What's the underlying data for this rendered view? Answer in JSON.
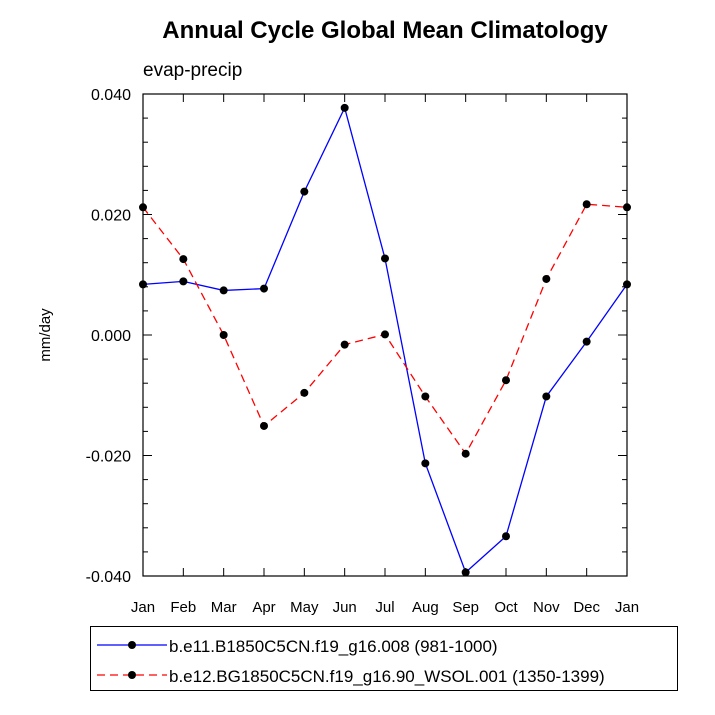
{
  "chart_data": {
    "type": "line",
    "title": "Annual Cycle Global Mean Climatology",
    "subtitle": "evap-precip",
    "xlabel": "",
    "ylabel": "mm/day",
    "categories": [
      "Jan",
      "Feb",
      "Mar",
      "Apr",
      "May",
      "Jun",
      "Jul",
      "Aug",
      "Sep",
      "Oct",
      "Nov",
      "Dec",
      "Jan"
    ],
    "ylim": [
      -0.04,
      0.04
    ],
    "yticks": [
      -0.04,
      -0.02,
      0.0,
      0.02,
      0.04
    ],
    "ytick_labels": [
      "-0.040",
      "-0.020",
      "0.000",
      "0.020",
      "0.040"
    ],
    "legend_position": "bottom",
    "series": [
      {
        "name": "b.e11.B1850C5CN.f19_g16.008 (981-1000)",
        "color": "#0000ff",
        "dash": "solid",
        "values": [
          0.0084,
          0.0089,
          0.0074,
          0.0077,
          0.0238,
          0.0377,
          0.0127,
          -0.0213,
          -0.0394,
          -0.0334,
          -0.0102,
          -0.0011,
          0.0084
        ]
      },
      {
        "name": "b.e12.BG1850C5CN.f19_g16.90_WSOL.001 (1350-1399)",
        "color": "#ff0000",
        "dash": "dashed",
        "values": [
          0.0212,
          0.0126,
          0.0,
          -0.0151,
          -0.0096,
          -0.0016,
          0.0001,
          -0.0102,
          -0.0197,
          -0.0075,
          0.0093,
          0.0217,
          0.0212
        ]
      }
    ]
  }
}
